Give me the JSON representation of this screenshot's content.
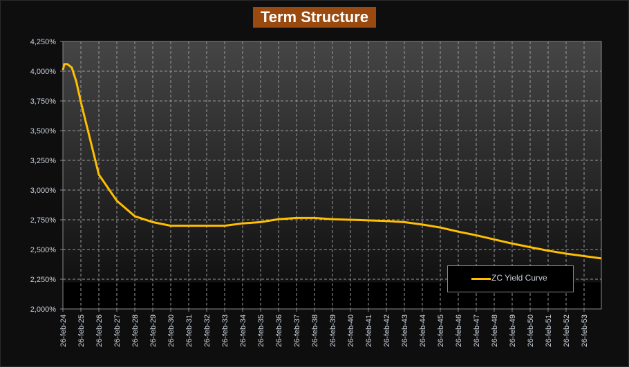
{
  "chart_data": {
    "type": "line",
    "title": "Term Structure",
    "xlabel": "",
    "ylabel": "",
    "ylim": [
      2.0,
      4.25
    ],
    "yticks": [
      "4,250%",
      "4,000%",
      "3,750%",
      "3,500%",
      "3,250%",
      "3,000%",
      "2,750%",
      "2,500%",
      "2,250%",
      "2,000%"
    ],
    "xticks": [
      "26-feb-24",
      "26-feb-25",
      "26-feb-26",
      "26-feb-27",
      "26-feb-28",
      "26-feb-29",
      "26-feb-30",
      "26-feb-31",
      "26-feb-32",
      "26-feb-33",
      "26-feb-34",
      "26-feb-35",
      "26-feb-36",
      "26-feb-37",
      "26-feb-38",
      "26-feb-39",
      "26-feb-40",
      "26-feb-41",
      "26-feb-42",
      "26-feb-43",
      "26-feb-44",
      "26-feb-45",
      "26-feb-46",
      "26-feb-47",
      "26-feb-48",
      "26-feb-49",
      "26-feb-50",
      "26-feb-51",
      "26-feb-52",
      "26-feb-53"
    ],
    "xlim": [
      "2024-02-26",
      "2054-02-10"
    ],
    "grid": true,
    "legend_position": "bottom-right",
    "series": [
      {
        "name": "ZC Yield Curve",
        "color": "#ffbf00",
        "x": [
          "2024-02-26",
          "2024-03-26",
          "2024-05-26",
          "2024-08-26",
          "2024-11-26",
          "2025-02-26",
          "2026-02-26",
          "2027-02-26",
          "2028-02-26",
          "2029-02-26",
          "2030-02-26",
          "2031-02-26",
          "2032-02-26",
          "2033-02-26",
          "2034-02-26",
          "2035-02-26",
          "2036-02-26",
          "2037-02-26",
          "2038-02-26",
          "2039-02-26",
          "2040-02-26",
          "2041-02-26",
          "2042-02-26",
          "2043-02-26",
          "2044-02-26",
          "2045-02-26",
          "2046-02-26",
          "2047-02-26",
          "2048-02-26",
          "2049-02-26",
          "2050-02-26",
          "2051-02-26",
          "2052-02-26",
          "2053-02-26",
          "2054-02-10"
        ],
        "values": [
          4.01,
          4.06,
          4.06,
          4.03,
          3.91,
          3.74,
          3.13,
          2.91,
          2.78,
          2.73,
          2.7,
          2.7,
          2.7,
          2.7,
          2.72,
          2.73,
          2.755,
          2.765,
          2.765,
          2.755,
          2.75,
          2.745,
          2.74,
          2.73,
          2.71,
          2.685,
          2.65,
          2.62,
          2.585,
          2.55,
          2.52,
          2.49,
          2.465,
          2.445,
          2.425
        ]
      }
    ]
  }
}
